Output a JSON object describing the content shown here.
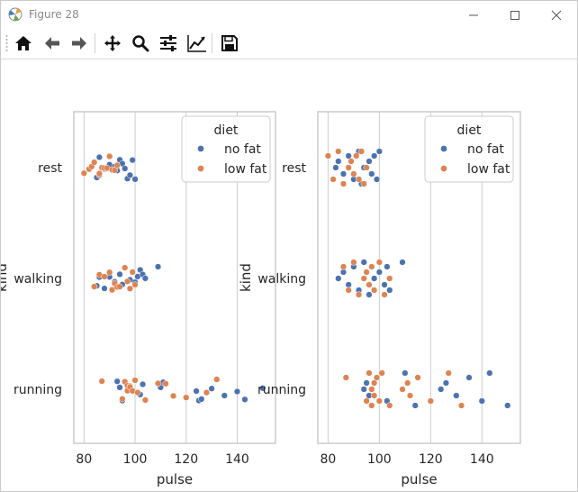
{
  "window": {
    "title": "Figure 28"
  },
  "toolbar": {
    "tools": [
      {
        "name": "home-icon"
      },
      {
        "name": "back-icon"
      },
      {
        "name": "forward-icon"
      },
      {
        "name": "pan-icon"
      },
      {
        "name": "zoom-icon"
      },
      {
        "name": "configure-subplots-icon"
      },
      {
        "name": "edit-axis-icon"
      },
      {
        "name": "save-icon"
      }
    ]
  },
  "colors": {
    "no_fat": "#4c72b0",
    "low_fat": "#dd8452",
    "grid": "#cccccc",
    "spine": "#cccccc",
    "text": "#262626"
  },
  "chart_data": [
    {
      "type": "scatter",
      "variant": "stripplot",
      "xlabel": "pulse",
      "ylabel": "kind",
      "xlim": [
        76,
        155
      ],
      "xticks": [
        80,
        100,
        120,
        140
      ],
      "grid": "vertical",
      "categories": [
        "rest",
        "walking",
        "running"
      ],
      "legend": {
        "title": "diet",
        "position": "top-right",
        "entries": [
          "no fat",
          "low fat"
        ]
      },
      "series": [
        {
          "name": "no fat",
          "points": [
            {
              "x": 85,
              "y": "rest"
            },
            {
              "x": 86,
              "y": "rest"
            },
            {
              "x": 88,
              "y": "rest"
            },
            {
              "x": 90,
              "y": "rest"
            },
            {
              "x": 92,
              "y": "rest"
            },
            {
              "x": 93,
              "y": "rest"
            },
            {
              "x": 94,
              "y": "rest"
            },
            {
              "x": 95,
              "y": "rest"
            },
            {
              "x": 96,
              "y": "rest"
            },
            {
              "x": 97,
              "y": "rest"
            },
            {
              "x": 98,
              "y": "rest"
            },
            {
              "x": 99,
              "y": "rest"
            },
            {
              "x": 100,
              "y": "rest"
            },
            {
              "x": 85,
              "y": "walking"
            },
            {
              "x": 86,
              "y": "walking"
            },
            {
              "x": 88,
              "y": "walking"
            },
            {
              "x": 90,
              "y": "walking"
            },
            {
              "x": 92,
              "y": "walking"
            },
            {
              "x": 94,
              "y": "walking"
            },
            {
              "x": 95,
              "y": "walking"
            },
            {
              "x": 98,
              "y": "walking"
            },
            {
              "x": 100,
              "y": "walking"
            },
            {
              "x": 101,
              "y": "walking"
            },
            {
              "x": 102,
              "y": "walking"
            },
            {
              "x": 103,
              "y": "walking"
            },
            {
              "x": 104,
              "y": "walking"
            },
            {
              "x": 109,
              "y": "walking"
            },
            {
              "x": 93,
              "y": "running"
            },
            {
              "x": 94,
              "y": "running"
            },
            {
              "x": 95,
              "y": "running"
            },
            {
              "x": 102,
              "y": "running"
            },
            {
              "x": 103,
              "y": "running"
            },
            {
              "x": 110,
              "y": "running"
            },
            {
              "x": 111,
              "y": "running"
            },
            {
              "x": 124,
              "y": "running"
            },
            {
              "x": 125,
              "y": "running"
            },
            {
              "x": 126,
              "y": "running"
            },
            {
              "x": 130,
              "y": "running"
            },
            {
              "x": 135,
              "y": "running"
            },
            {
              "x": 140,
              "y": "running"
            },
            {
              "x": 143,
              "y": "running"
            },
            {
              "x": 150,
              "y": "running"
            }
          ]
        },
        {
          "name": "low fat",
          "points": [
            {
              "x": 80,
              "y": "rest"
            },
            {
              "x": 82,
              "y": "rest"
            },
            {
              "x": 83,
              "y": "rest"
            },
            {
              "x": 84,
              "y": "rest"
            },
            {
              "x": 86,
              "y": "rest"
            },
            {
              "x": 86,
              "y": "rest"
            },
            {
              "x": 87,
              "y": "rest"
            },
            {
              "x": 88,
              "y": "rest"
            },
            {
              "x": 89,
              "y": "rest"
            },
            {
              "x": 90,
              "y": "rest"
            },
            {
              "x": 91,
              "y": "rest"
            },
            {
              "x": 92,
              "y": "rest"
            },
            {
              "x": 93,
              "y": "rest"
            },
            {
              "x": 84,
              "y": "walking"
            },
            {
              "x": 86,
              "y": "walking"
            },
            {
              "x": 88,
              "y": "walking"
            },
            {
              "x": 90,
              "y": "walking"
            },
            {
              "x": 91,
              "y": "walking"
            },
            {
              "x": 92,
              "y": "walking"
            },
            {
              "x": 93,
              "y": "walking"
            },
            {
              "x": 94,
              "y": "walking"
            },
            {
              "x": 96,
              "y": "walking"
            },
            {
              "x": 97,
              "y": "walking"
            },
            {
              "x": 98,
              "y": "walking"
            },
            {
              "x": 99,
              "y": "walking"
            },
            {
              "x": 100,
              "y": "walking"
            },
            {
              "x": 87,
              "y": "running"
            },
            {
              "x": 95,
              "y": "running"
            },
            {
              "x": 96,
              "y": "running"
            },
            {
              "x": 97,
              "y": "running"
            },
            {
              "x": 97,
              "y": "running"
            },
            {
              "x": 98,
              "y": "running"
            },
            {
              "x": 98,
              "y": "running"
            },
            {
              "x": 99,
              "y": "running"
            },
            {
              "x": 100,
              "y": "running"
            },
            {
              "x": 101,
              "y": "running"
            },
            {
              "x": 104,
              "y": "running"
            },
            {
              "x": 109,
              "y": "running"
            },
            {
              "x": 112,
              "y": "running"
            },
            {
              "x": 115,
              "y": "running"
            },
            {
              "x": 120,
              "y": "running"
            },
            {
              "x": 128,
              "y": "running"
            },
            {
              "x": 132,
              "y": "running"
            }
          ]
        }
      ]
    },
    {
      "type": "scatter",
      "variant": "swarmplot",
      "xlabel": "pulse",
      "ylabel": "kind",
      "xlim": [
        76,
        155
      ],
      "xticks": [
        80,
        100,
        120,
        140
      ],
      "grid": "vertical",
      "categories": [
        "rest",
        "walking",
        "running"
      ],
      "legend": {
        "title": "diet",
        "position": "top-right",
        "entries": [
          "no fat",
          "low fat"
        ]
      },
      "series": [
        {
          "name": "no fat",
          "points": [
            {
              "x": 83,
              "y": "rest"
            },
            {
              "x": 84,
              "y": "rest"
            },
            {
              "x": 86,
              "y": "rest"
            },
            {
              "x": 88,
              "y": "rest"
            },
            {
              "x": 90,
              "y": "rest"
            },
            {
              "x": 92,
              "y": "rest"
            },
            {
              "x": 93,
              "y": "rest"
            },
            {
              "x": 94,
              "y": "rest"
            },
            {
              "x": 96,
              "y": "rest"
            },
            {
              "x": 97,
              "y": "rest"
            },
            {
              "x": 98,
              "y": "rest"
            },
            {
              "x": 99,
              "y": "rest"
            },
            {
              "x": 100,
              "y": "rest"
            },
            {
              "x": 84,
              "y": "walking"
            },
            {
              "x": 86,
              "y": "walking"
            },
            {
              "x": 88,
              "y": "walking"
            },
            {
              "x": 90,
              "y": "walking"
            },
            {
              "x": 92,
              "y": "walking"
            },
            {
              "x": 94,
              "y": "walking"
            },
            {
              "x": 96,
              "y": "walking"
            },
            {
              "x": 98,
              "y": "walking"
            },
            {
              "x": 100,
              "y": "walking"
            },
            {
              "x": 102,
              "y": "walking"
            },
            {
              "x": 103,
              "y": "walking"
            },
            {
              "x": 104,
              "y": "walking"
            },
            {
              "x": 109,
              "y": "walking"
            },
            {
              "x": 94,
              "y": "running"
            },
            {
              "x": 95,
              "y": "running"
            },
            {
              "x": 96,
              "y": "running"
            },
            {
              "x": 99,
              "y": "running"
            },
            {
              "x": 103,
              "y": "running"
            },
            {
              "x": 110,
              "y": "running"
            },
            {
              "x": 114,
              "y": "running"
            },
            {
              "x": 124,
              "y": "running"
            },
            {
              "x": 126,
              "y": "running"
            },
            {
              "x": 130,
              "y": "running"
            },
            {
              "x": 135,
              "y": "running"
            },
            {
              "x": 140,
              "y": "running"
            },
            {
              "x": 143,
              "y": "running"
            },
            {
              "x": 150,
              "y": "running"
            }
          ]
        },
        {
          "name": "low fat",
          "points": [
            {
              "x": 80,
              "y": "rest"
            },
            {
              "x": 82,
              "y": "rest"
            },
            {
              "x": 84,
              "y": "rest"
            },
            {
              "x": 86,
              "y": "rest"
            },
            {
              "x": 88,
              "y": "rest"
            },
            {
              "x": 89,
              "y": "rest"
            },
            {
              "x": 90,
              "y": "rest"
            },
            {
              "x": 91,
              "y": "rest"
            },
            {
              "x": 92,
              "y": "rest"
            },
            {
              "x": 93,
              "y": "rest"
            },
            {
              "x": 94,
              "y": "rest"
            },
            {
              "x": 95,
              "y": "rest"
            },
            {
              "x": 86,
              "y": "walking"
            },
            {
              "x": 88,
              "y": "walking"
            },
            {
              "x": 90,
              "y": "walking"
            },
            {
              "x": 92,
              "y": "walking"
            },
            {
              "x": 94,
              "y": "walking"
            },
            {
              "x": 95,
              "y": "walking"
            },
            {
              "x": 96,
              "y": "walking"
            },
            {
              "x": 97,
              "y": "walking"
            },
            {
              "x": 98,
              "y": "walking"
            },
            {
              "x": 100,
              "y": "walking"
            },
            {
              "x": 102,
              "y": "walking"
            },
            {
              "x": 104,
              "y": "walking"
            },
            {
              "x": 87,
              "y": "running"
            },
            {
              "x": 95,
              "y": "running"
            },
            {
              "x": 96,
              "y": "running"
            },
            {
              "x": 97,
              "y": "running"
            },
            {
              "x": 97,
              "y": "running"
            },
            {
              "x": 98,
              "y": "running"
            },
            {
              "x": 98,
              "y": "running"
            },
            {
              "x": 99,
              "y": "running"
            },
            {
              "x": 100,
              "y": "running"
            },
            {
              "x": 101,
              "y": "running"
            },
            {
              "x": 104,
              "y": "running"
            },
            {
              "x": 109,
              "y": "running"
            },
            {
              "x": 111,
              "y": "running"
            },
            {
              "x": 112,
              "y": "running"
            },
            {
              "x": 115,
              "y": "running"
            },
            {
              "x": 120,
              "y": "running"
            },
            {
              "x": 127,
              "y": "running"
            },
            {
              "x": 132,
              "y": "running"
            }
          ]
        }
      ]
    }
  ]
}
